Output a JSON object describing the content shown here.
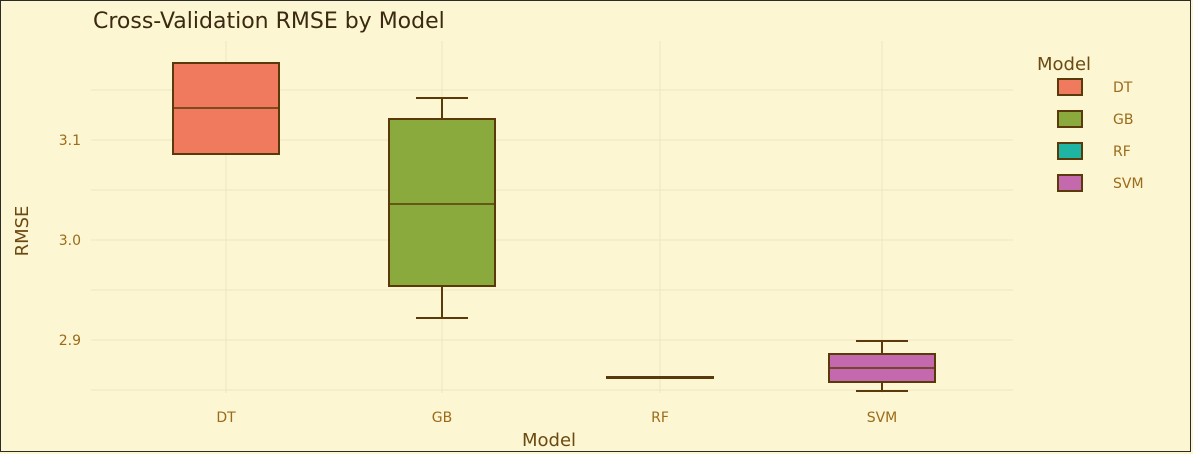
{
  "chart_data": {
    "type": "box",
    "title": "Cross-Validation RMSE by Model",
    "xlabel": "Model",
    "ylabel": "RMSE",
    "categories": [
      "DT",
      "GB",
      "RF",
      "SVM"
    ],
    "yticks": [
      2.9,
      3.0,
      3.1
    ],
    "ytick_labels": [
      "2.9",
      "3.0",
      "3.1"
    ],
    "ylim": [
      2.83,
      3.18
    ],
    "grid": true,
    "legend": {
      "title": "Model",
      "placement": "right",
      "entries": [
        "DT",
        "GB",
        "RF",
        "SVM"
      ]
    },
    "boxes": [
      {
        "name": "DT",
        "min": 3.086,
        "q1": 3.086,
        "median": 3.132,
        "q3": 3.177,
        "max": 3.177,
        "color": "#f07a5e"
      },
      {
        "name": "GB",
        "min": 2.922,
        "q1": 2.954,
        "median": 3.036,
        "q3": 3.121,
        "max": 3.142,
        "color": "#8aaa3e"
      },
      {
        "name": "RF",
        "min": 2.863,
        "q1": 2.863,
        "median": 2.863,
        "q3": 2.863,
        "max": 2.863,
        "color": "#1fb5a3"
      },
      {
        "name": "SVM",
        "min": 2.849,
        "q1": 2.858,
        "median": 2.872,
        "q3": 2.886,
        "max": 2.899,
        "color": "#c469ad"
      }
    ]
  },
  "colors": {
    "background": "#fdf6d3",
    "outline": "#5a3a0a"
  }
}
